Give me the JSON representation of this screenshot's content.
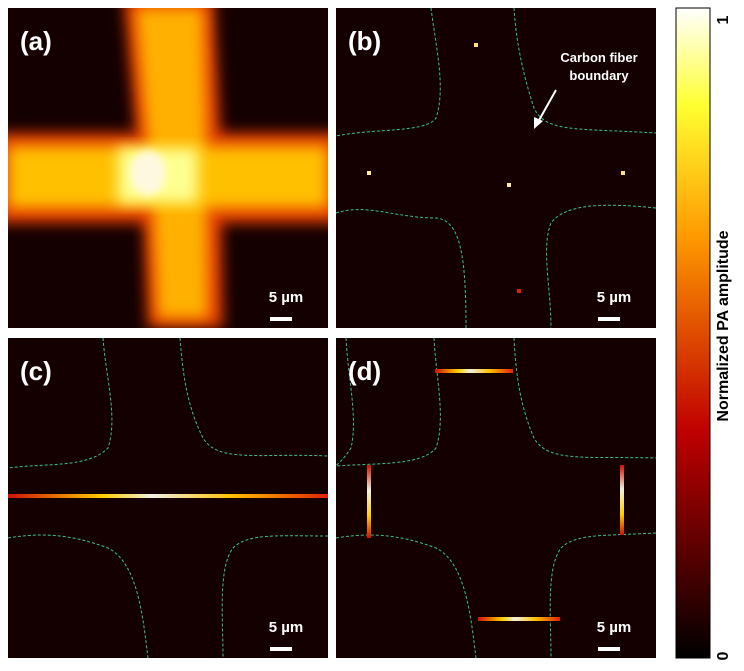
{
  "panels": [
    {
      "label": "(a)",
      "scale_bar": "5 µm"
    },
    {
      "label": "(b)",
      "scale_bar": "5 µm",
      "annotation": [
        "Carbon fiber",
        "boundary"
      ]
    },
    {
      "label": "(c)",
      "scale_bar": "5 µm"
    },
    {
      "label": "(d)",
      "scale_bar": "5 µm"
    }
  ],
  "colorbar": {
    "label": "Normalized PA amplitude",
    "max_label": "1",
    "min_label": "0"
  }
}
